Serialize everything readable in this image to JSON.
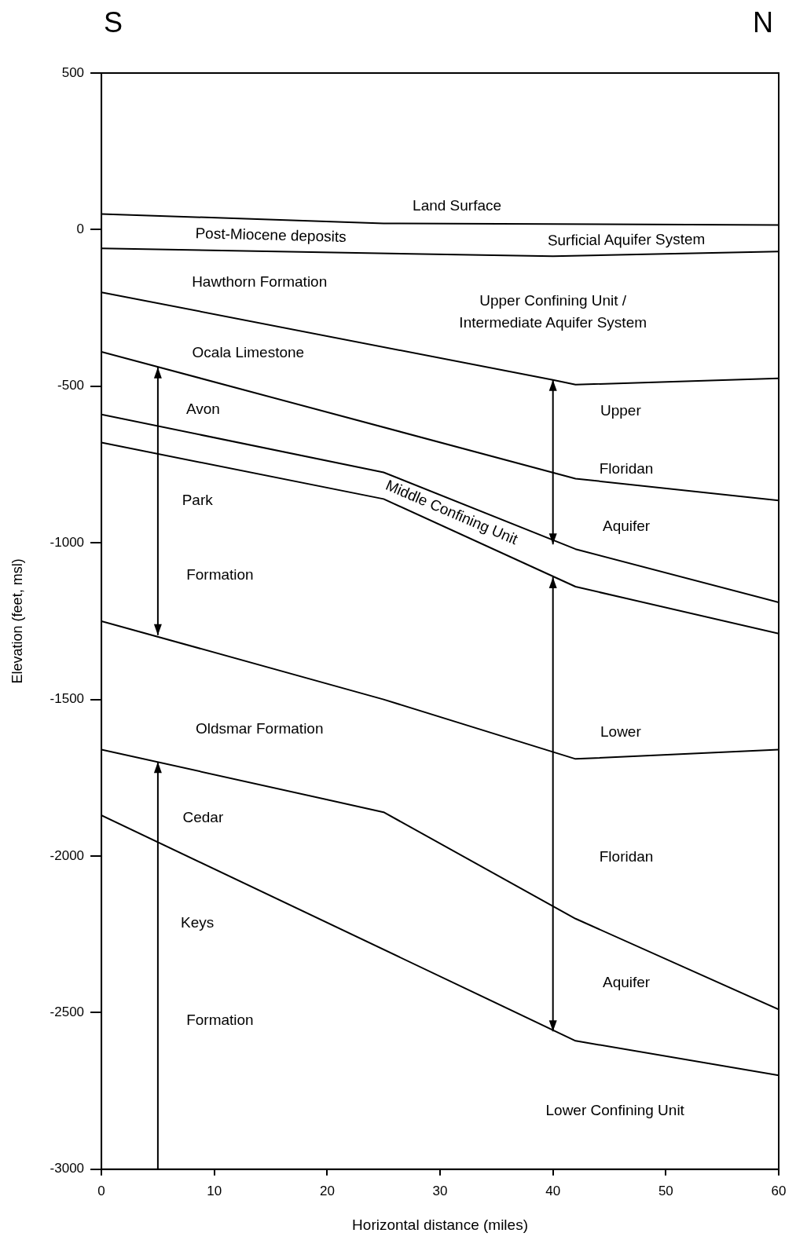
{
  "chart_data": {
    "type": "line",
    "xlabel": "Horizontal distance (miles)",
    "ylabel": "Elevation (feet, msl)",
    "xlim": [
      0,
      60
    ],
    "xticks": [
      0,
      10,
      20,
      30,
      40,
      50,
      60
    ],
    "ylim": [
      -3000,
      500
    ],
    "yticks": [
      -3000,
      -2500,
      -2000,
      -1500,
      -1000,
      -500,
      0,
      500
    ],
    "grid": false,
    "legend": false,
    "marker": "none",
    "line_style": "solid",
    "series": [
      {
        "color": "#000000",
        "x": [
          0,
          25,
          60
        ],
        "values": [
          50,
          20,
          15
        ]
      },
      {
        "color": "#000000",
        "x": [
          0,
          40,
          60
        ],
        "values": [
          -60,
          -85,
          -70
        ]
      },
      {
        "color": "#000000",
        "x": [
          0,
          40,
          42,
          60
        ],
        "values": [
          -200,
          -480,
          -495,
          -475
        ]
      },
      {
        "color": "#000000",
        "x": [
          0,
          42,
          60
        ],
        "values": [
          -390,
          -795,
          -865
        ]
      },
      {
        "color": "#000000",
        "x": [
          0,
          25,
          42,
          60
        ],
        "values": [
          -590,
          -775,
          -1020,
          -1190
        ]
      },
      {
        "color": "#000000",
        "x": [
          0,
          25,
          42,
          60
        ],
        "values": [
          -680,
          -860,
          -1140,
          -1290
        ]
      },
      {
        "color": "#000000",
        "x": [
          0,
          25,
          42,
          60
        ],
        "values": [
          -1250,
          -1500,
          -1690,
          -1660
        ]
      },
      {
        "color": "#000000",
        "x": [
          0,
          25,
          42,
          60
        ],
        "values": [
          -1660,
          -1860,
          -2200,
          -2490
        ]
      },
      {
        "color": "#000000",
        "x": [
          0,
          42,
          60
        ],
        "values": [
          -1870,
          -2590,
          -2700
        ]
      }
    ],
    "annotations": [
      "S",
      "N",
      "Land Surface",
      "Post-Miocene deposits",
      "Surficial Aquifer System",
      "Hawthorn Formation",
      "Upper Confining Unit /\nIntermediate Aquifer System",
      "Ocala Limestone",
      "Avon",
      "Park",
      "Formation",
      "Upper",
      "Floridan",
      "Aquifer",
      "Middle Confining Unit",
      "Oldsmar Formation",
      "Lower",
      "Cedar",
      "Keys",
      "Formation",
      "Floridan",
      "Aquifer",
      "Lower Confining Unit"
    ]
  }
}
